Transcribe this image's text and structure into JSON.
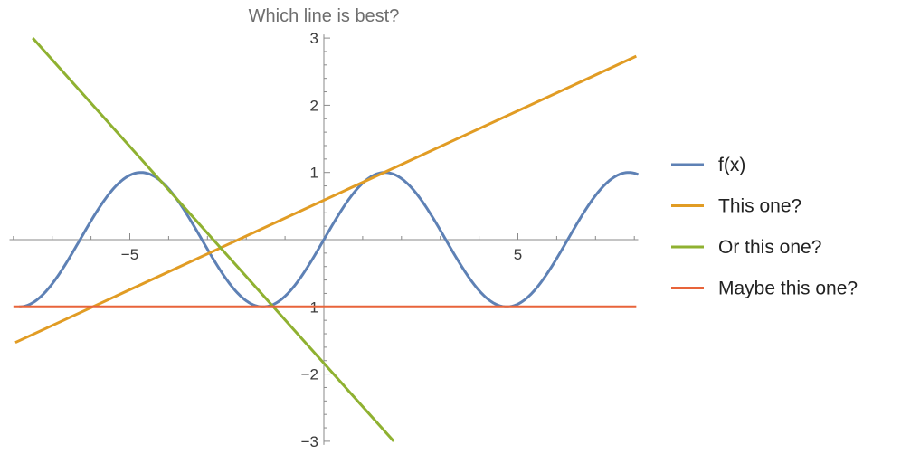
{
  "chart_data": {
    "type": "line",
    "title": "Which line is best?",
    "xlabel": "",
    "ylabel": "",
    "xlim": [
      -8.1,
      8.1
    ],
    "ylim": [
      -3,
      3
    ],
    "x_major_ticks": [
      -5,
      5
    ],
    "x_tick_labels": [
      "−5",
      "5"
    ],
    "y_major_ticks": [
      -3,
      -2,
      -1,
      1,
      2,
      3
    ],
    "y_tick_labels": [
      "−3",
      "−2",
      "−1",
      "1",
      "2",
      "3"
    ],
    "x_minor_step": 1,
    "y_minor_step": 0.2,
    "grid": false,
    "legend_position": "right",
    "series": [
      {
        "name": "f(x)",
        "color": "#5e81b5",
        "function": "sin",
        "x_range": [
          -7.85,
          8.1
        ]
      },
      {
        "name": "This one?",
        "color": "#e19c24",
        "x": [
          -7.95,
          8.05
        ],
        "y": [
          -1.53,
          2.73
        ]
      },
      {
        "name": "Or this one?",
        "color": "#8fb131",
        "x": [
          -7.5,
          1.8
        ],
        "y": [
          3.0,
          -3.0
        ]
      },
      {
        "name": "Maybe this one?",
        "color": "#e8643a",
        "x": [
          -8.0,
          8.05
        ],
        "y": [
          -1.0,
          -1.0
        ]
      }
    ]
  }
}
